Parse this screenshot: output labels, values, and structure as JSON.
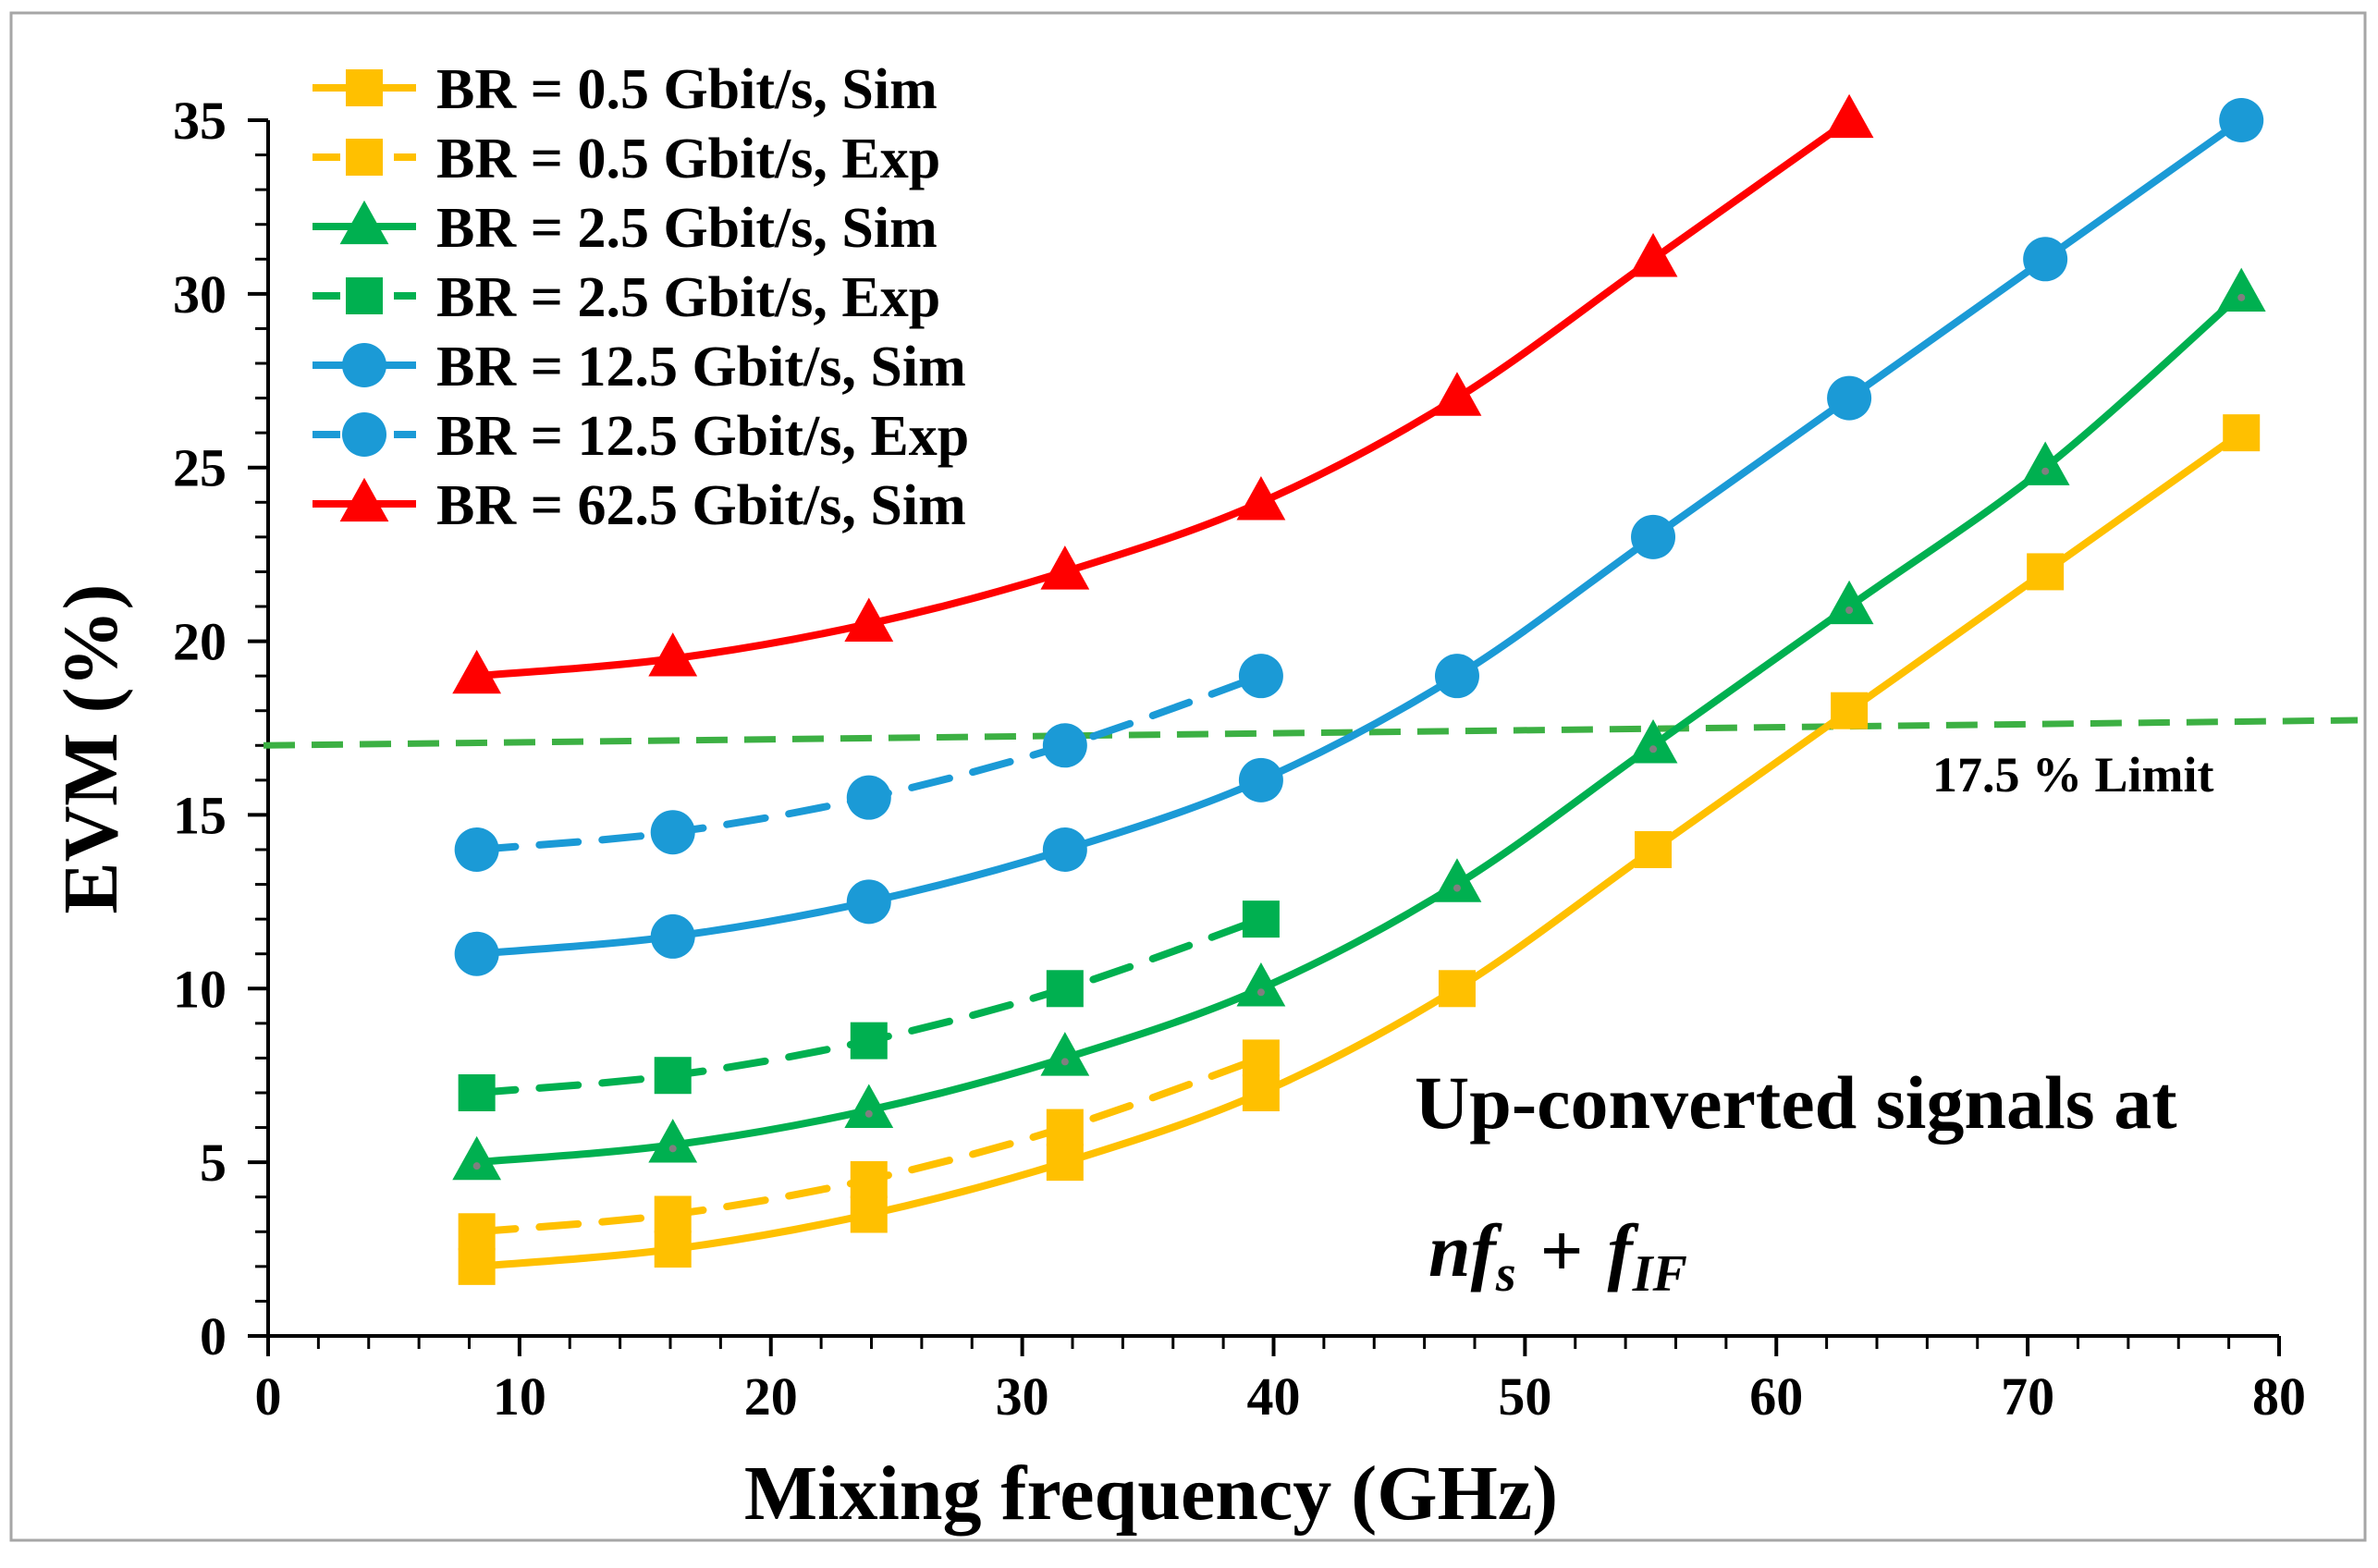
{
  "chart_data": {
    "type": "line",
    "xlabel": "Mixing frequency (GHz)",
    "ylabel": "EVM (%)",
    "xlim": [
      0,
      80
    ],
    "ylim": [
      0,
      35
    ],
    "x_ticks": [
      0,
      10,
      20,
      30,
      40,
      50,
      60,
      70,
      80
    ],
    "y_ticks": [
      0,
      5,
      10,
      15,
      20,
      25,
      30,
      35
    ],
    "legend_position": "top-left",
    "grid": false,
    "series": [
      {
        "name": "BR = 0.5 Gbit/s, Sim",
        "color": "#ffc000",
        "dash": "solid",
        "marker": "square",
        "x": [
          8.3,
          16.1,
          23.9,
          31.7,
          39.5,
          47.3,
          55.1,
          62.9,
          70.7,
          78.5
        ],
        "y": [
          2.0,
          2.5,
          3.5,
          5.0,
          7.0,
          10.0,
          14.0,
          18.0,
          22.0,
          26.0
        ]
      },
      {
        "name": "BR = 0.5 Gbit/s, Exp",
        "color": "#ffc000",
        "dash": "dashed",
        "marker": "square",
        "x": [
          8.3,
          16.1,
          23.9,
          31.7,
          39.5
        ],
        "y": [
          3.0,
          3.5,
          4.5,
          6.0,
          8.0
        ]
      },
      {
        "name": "BR = 2.5 Gbit/s, Sim",
        "color": "#00b050",
        "dash": "solid",
        "marker": "triangle",
        "x": [
          8.3,
          16.1,
          23.9,
          31.7,
          39.5,
          47.3,
          55.1,
          62.9,
          70.7,
          78.5
        ],
        "y": [
          5.0,
          5.5,
          6.5,
          8.0,
          10.0,
          13.0,
          17.0,
          21.0,
          25.0,
          30.0
        ]
      },
      {
        "name": "BR = 2.5 Gbit/s, Exp",
        "color": "#00b050",
        "dash": "dashed",
        "marker": "square",
        "x": [
          8.3,
          16.1,
          23.9,
          31.7,
          39.5
        ],
        "y": [
          7.0,
          7.5,
          8.5,
          10.0,
          12.0
        ]
      },
      {
        "name": "BR = 12.5 Gbit/s, Sim",
        "color": "#1b9ad6",
        "dash": "solid",
        "marker": "circle",
        "x": [
          8.3,
          16.1,
          23.9,
          31.7,
          39.5,
          47.3,
          55.1,
          62.9,
          70.7,
          78.5
        ],
        "y": [
          11.0,
          11.5,
          12.5,
          14.0,
          16.0,
          19.0,
          23.0,
          27.0,
          31.0,
          35.0
        ]
      },
      {
        "name": "BR = 12.5 Gbit/s, Exp",
        "color": "#1b9ad6",
        "dash": "dashed",
        "marker": "circle",
        "x": [
          8.3,
          16.1,
          23.9,
          31.7,
          39.5
        ],
        "y": [
          14.0,
          14.5,
          15.5,
          17.0,
          19.0
        ]
      },
      {
        "name": "BR = 62.5 Gbit/s, Sim",
        "color": "#ff0000",
        "dash": "solid",
        "marker": "triangle",
        "x": [
          8.3,
          16.1,
          23.9,
          31.7,
          39.5,
          47.3,
          55.1,
          62.9
        ],
        "y": [
          19.0,
          19.5,
          20.5,
          22.0,
          24.0,
          27.0,
          31.0,
          35.0
        ]
      }
    ],
    "reference_line": {
      "label": "17.5 % Limit",
      "color": "#3cb043",
      "x": [
        0,
        80
      ],
      "y": [
        17.0,
        17.7
      ]
    },
    "annotation": {
      "line1": "Up-converted signals at",
      "math": {
        "n": "n",
        "f": "f",
        "s": "s",
        "plus": "+",
        "f2": "f",
        "if": "IF"
      }
    }
  }
}
